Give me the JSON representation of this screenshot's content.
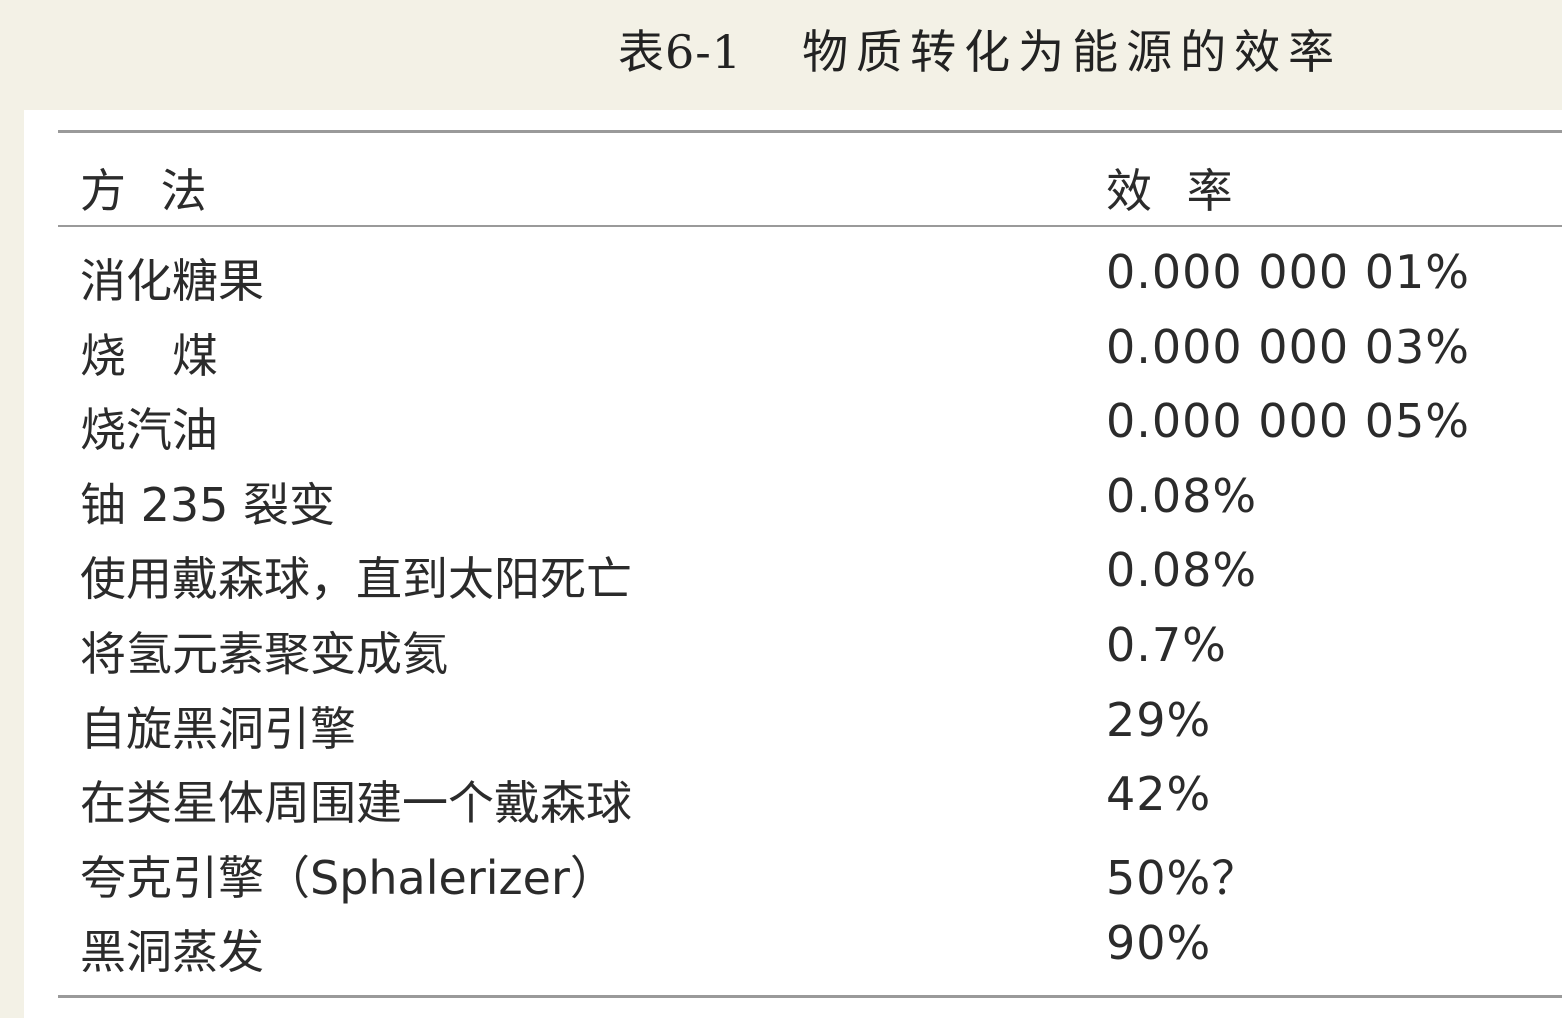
{
  "caption": {
    "number": "表6-1",
    "title": "物质转化为能源的效率"
  },
  "table": {
    "headers": {
      "method": "方 法",
      "efficiency": "效 率"
    },
    "rows": [
      {
        "method": "消化糖果",
        "efficiency": "0.000 000 01%"
      },
      {
        "method": "烧　煤",
        "efficiency": "0.000 000 03%"
      },
      {
        "method": "烧汽油",
        "efficiency": "0.000 000 05%"
      },
      {
        "method": "铀 235 裂变",
        "efficiency": "0.08%"
      },
      {
        "method": "使用戴森球，直到太阳死亡",
        "efficiency": "0.08%"
      },
      {
        "method": "将氢元素聚变成氦",
        "efficiency": "0.7%"
      },
      {
        "method": "自旋黑洞引擎",
        "efficiency": "29%"
      },
      {
        "method": "在类星体周围建一个戴森球",
        "efficiency": "42%"
      },
      {
        "method": "夸克引擎（Sphalerizer）",
        "efficiency": "50%？"
      },
      {
        "method": "黑洞蒸发",
        "efficiency": "90%"
      }
    ]
  }
}
